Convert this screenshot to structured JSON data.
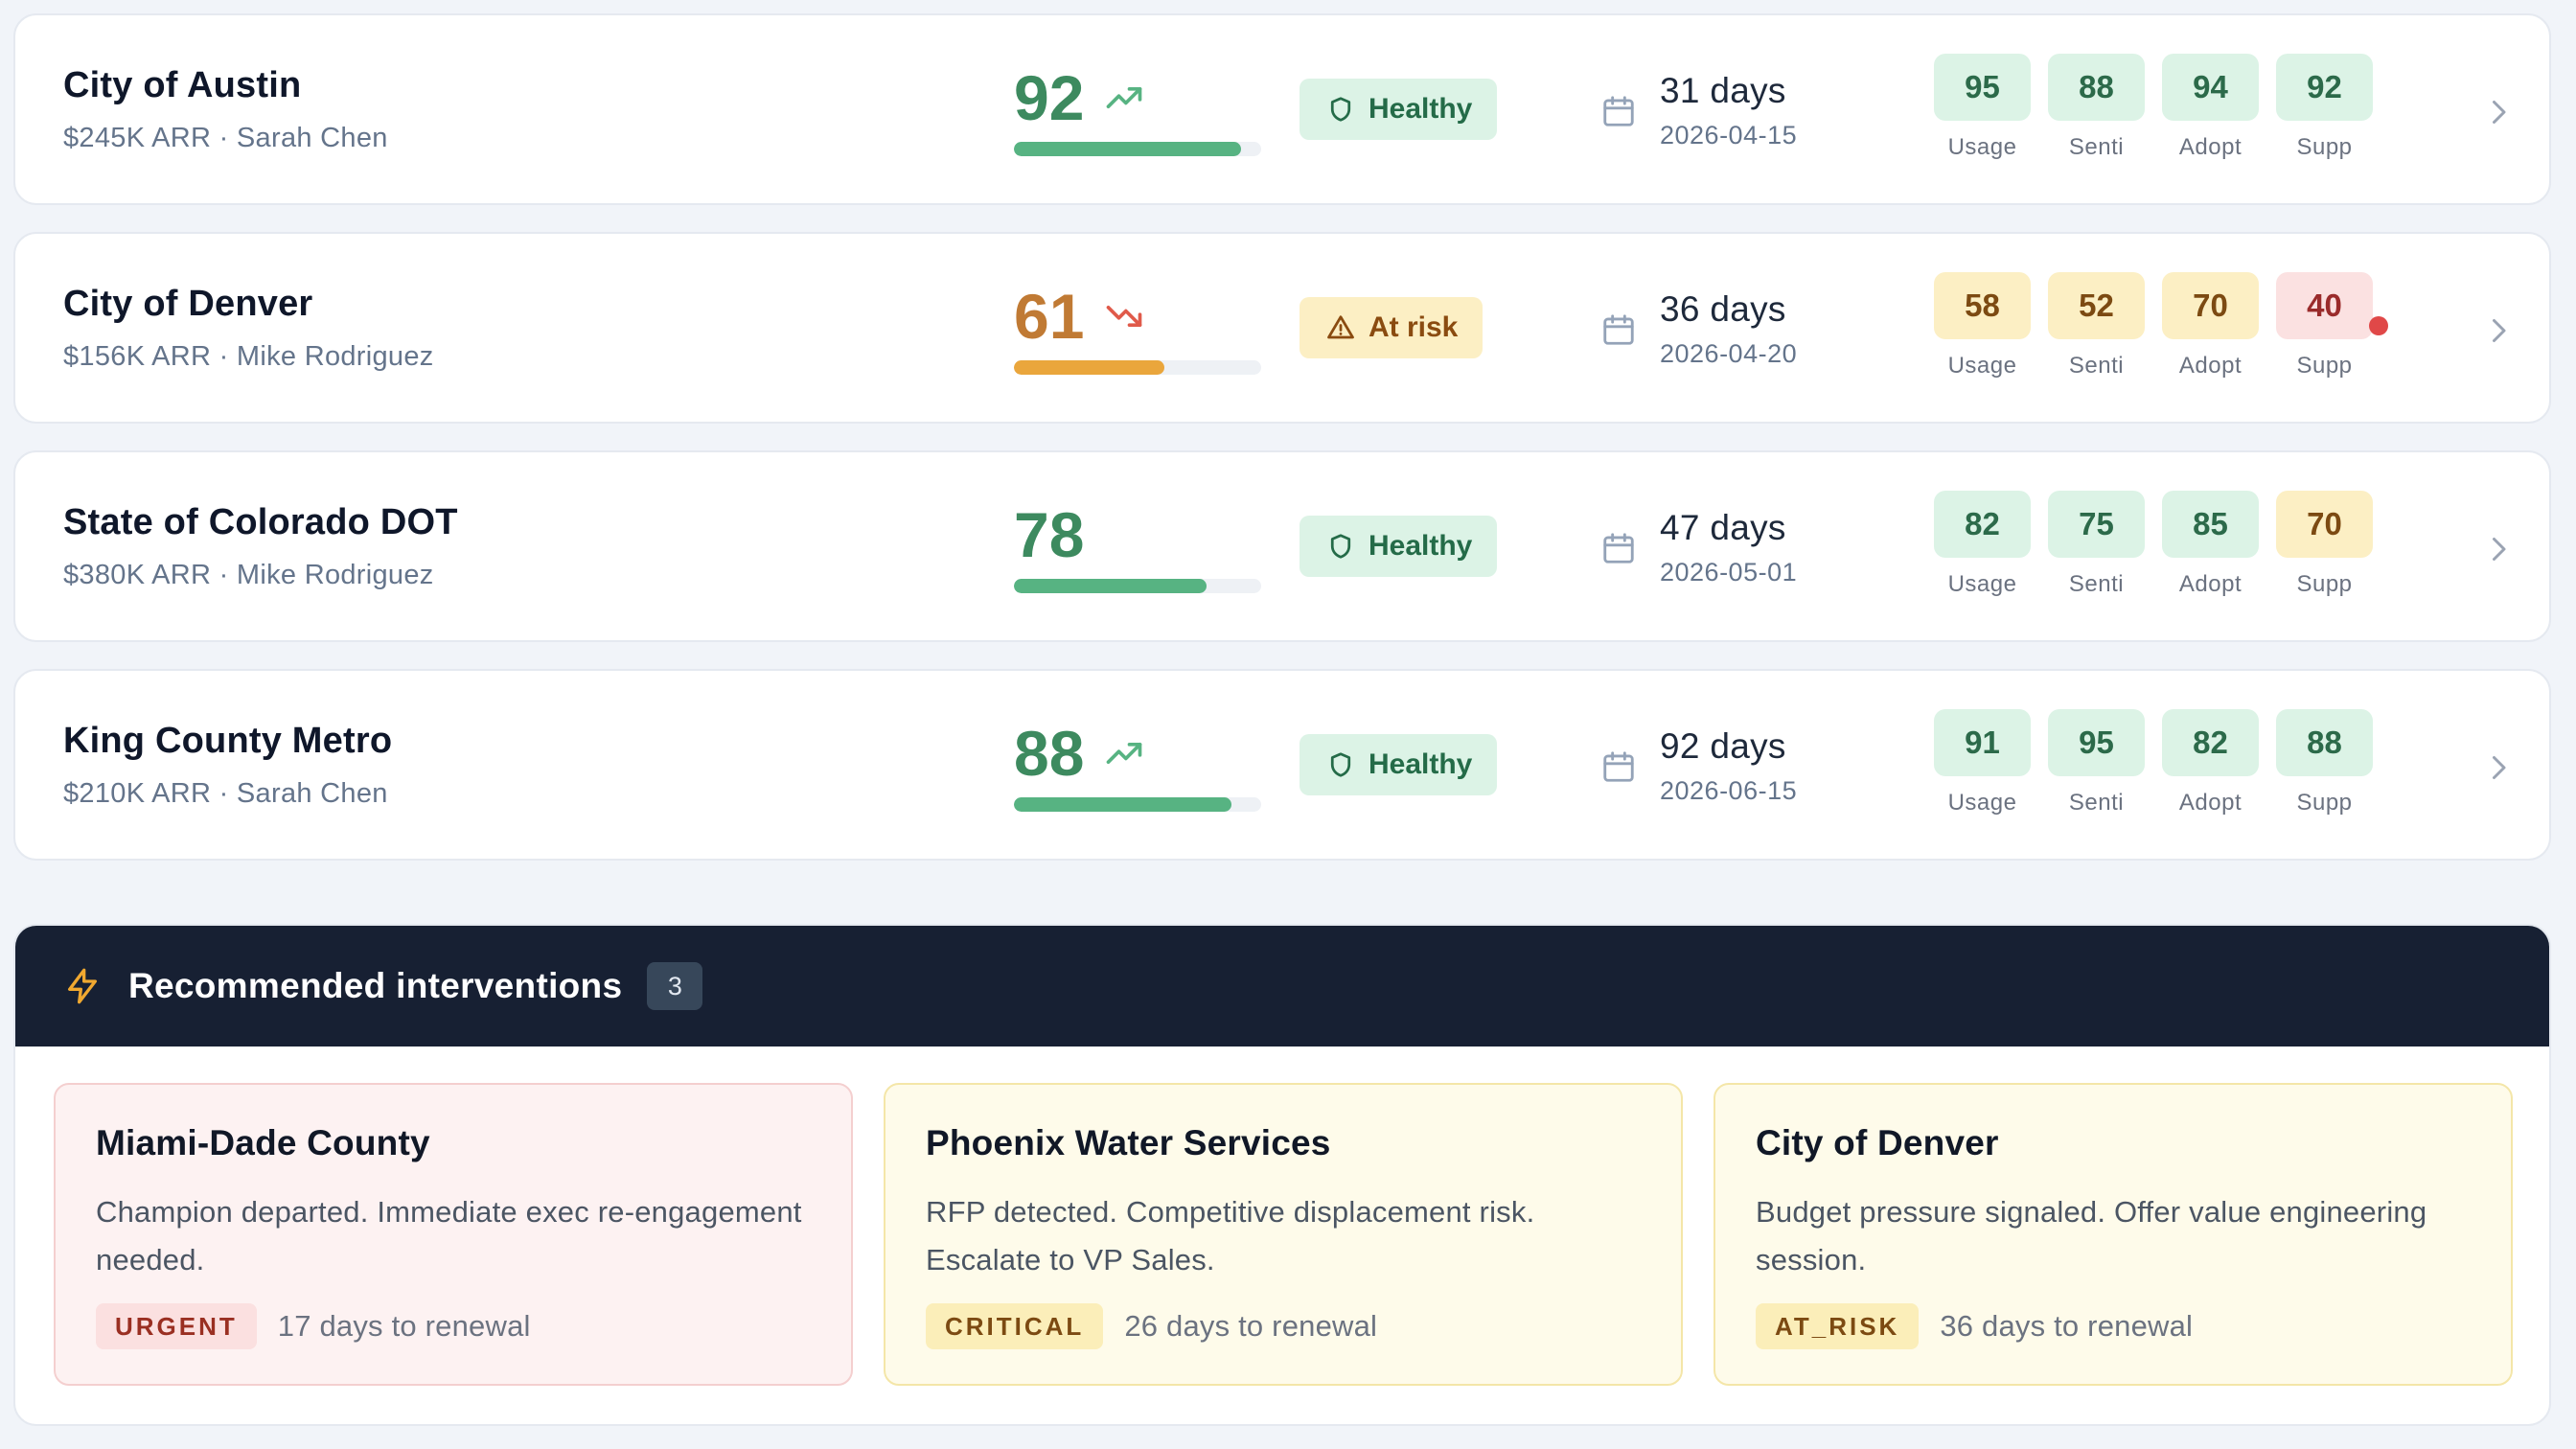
{
  "accounts": [
    {
      "name": "City of Austin",
      "subtitle": "$245K ARR · Sarah Chen",
      "score": 92,
      "trend": "trending-up",
      "status_label": "Healthy",
      "status_icon": "shield-icon",
      "renewal_days": "31 days",
      "renewal_date": "2026-04-15",
      "metrics": [
        {
          "value": "95",
          "label": "Usage"
        },
        {
          "value": "88",
          "label": "Senti"
        },
        {
          "value": "94",
          "label": "Adopt"
        },
        {
          "value": "92",
          "label": "Supp"
        }
      ]
    },
    {
      "name": "City of Denver",
      "subtitle": "$156K ARR · Mike Rodriguez",
      "score": 61,
      "trend": "trending-down",
      "status_label": "At risk",
      "status_icon": "warning-icon",
      "renewal_days": "36 days",
      "renewal_date": "2026-04-20",
      "metrics": [
        {
          "value": "58",
          "label": "Usage"
        },
        {
          "value": "52",
          "label": "Senti"
        },
        {
          "value": "70",
          "label": "Adopt"
        },
        {
          "value": "40",
          "label": "Supp"
        }
      ]
    },
    {
      "name": "State of Colorado DOT",
      "subtitle": "$380K ARR · Mike Rodriguez",
      "score": 78,
      "trend": "none",
      "status_label": "Healthy",
      "status_icon": "shield-icon",
      "renewal_days": "47 days",
      "renewal_date": "2026-05-01",
      "metrics": [
        {
          "value": "82",
          "label": "Usage"
        },
        {
          "value": "75",
          "label": "Senti"
        },
        {
          "value": "85",
          "label": "Adopt"
        },
        {
          "value": "70",
          "label": "Supp"
        }
      ]
    },
    {
      "name": "King County Metro",
      "subtitle": "$210K ARR · Sarah Chen",
      "score": 88,
      "trend": "trending-up",
      "status_label": "Healthy",
      "status_icon": "shield-icon",
      "renewal_days": "92 days",
      "renewal_date": "2026-06-15",
      "metrics": [
        {
          "value": "91",
          "label": "Usage"
        },
        {
          "value": "95",
          "label": "Senti"
        },
        {
          "value": "82",
          "label": "Adopt"
        },
        {
          "value": "88",
          "label": "Supp"
        }
      ]
    }
  ],
  "interventions": {
    "title": "Recommended interventions",
    "count": "3",
    "icon": "lightning-bolt-icon",
    "cards": [
      {
        "account": "Miami-Dade County",
        "description": "Champion departed. Immediate exec re-engagement needed.",
        "tag": "URGENT",
        "renewal": "17 days to renewal"
      },
      {
        "account": "Phoenix Water Services",
        "description": "RFP detected. Competitive displacement risk. Escalate to VP Sales.",
        "tag": "CRITICAL",
        "renewal": "26 days to renewal"
      },
      {
        "account": "City of Denver",
        "description": "Budget pressure signaled. Offer value engineering session.",
        "tag": "AT_RISK",
        "renewal": "36 days to renewal"
      }
    ]
  },
  "colors": {
    "healthy_green": "#57b382",
    "at_risk_orange": "#eaa63c",
    "alert_red": "#e04848",
    "panel_header": "#172033"
  }
}
